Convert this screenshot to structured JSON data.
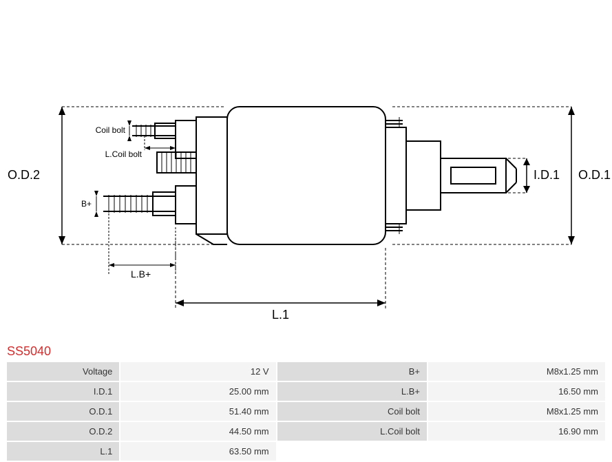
{
  "part_number": "SS5040",
  "diagram": {
    "type": "technical-drawing",
    "labels": {
      "od2": "O.D.2",
      "od1": "O.D.1",
      "id1": "I.D.1",
      "coil_bolt": "Coil bolt",
      "l_coil_bolt": "L.Coil bolt",
      "b_plus": "B+",
      "l_b_plus": "L.B+",
      "l1": "L.1"
    },
    "colors": {
      "stroke": "#000000",
      "dashed": "#000000",
      "background": "#ffffff"
    },
    "font_sizes": {
      "main_label": 18,
      "small_label": 13
    },
    "line_widths": {
      "part": 2,
      "dimension": 1
    }
  },
  "specs": {
    "rows": [
      {
        "label1": "Voltage",
        "value1": "12 V",
        "label2": "B+",
        "value2": "M8x1.25 mm"
      },
      {
        "label1": "I.D.1",
        "value1": "25.00 mm",
        "label2": "L.B+",
        "value2": "16.50 mm"
      },
      {
        "label1": "O.D.1",
        "value1": "51.40 mm",
        "label2": "Coil bolt",
        "value2": "M8x1.25 mm"
      },
      {
        "label1": "O.D.2",
        "value1": "44.50 mm",
        "label2": "L.Coil bolt",
        "value2": "16.90 mm"
      },
      {
        "label1": "L.1",
        "value1": "63.50 mm",
        "label2": "",
        "value2": ""
      }
    ]
  }
}
